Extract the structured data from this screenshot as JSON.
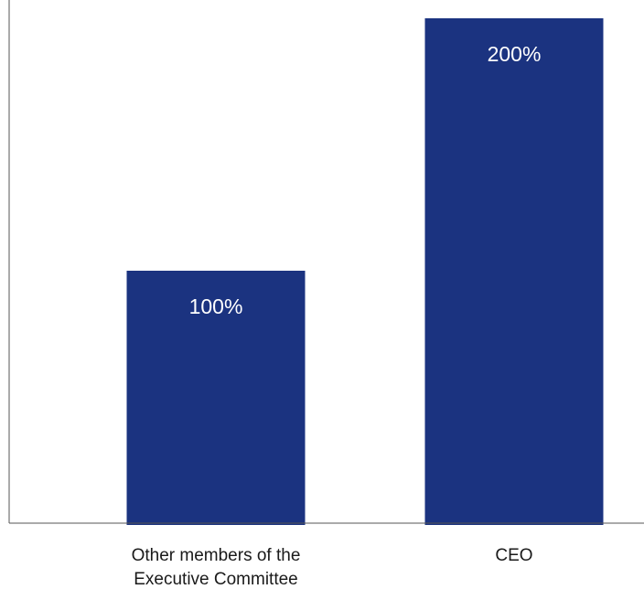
{
  "chart_data": {
    "type": "bar",
    "categories": [
      "Other members of the Executive Committee",
      "CEO"
    ],
    "category_lines": [
      [
        "Other members of the",
        "Executive Committee"
      ],
      [
        "CEO"
      ]
    ],
    "values": [
      100,
      200
    ],
    "data_labels": [
      "100%",
      "200%"
    ],
    "title": "",
    "xlabel": "",
    "ylabel": "",
    "ylim": [
      0,
      200
    ],
    "grid": false,
    "legend": "none",
    "bar_color": "#1b3380",
    "axis_color": "#555555"
  }
}
